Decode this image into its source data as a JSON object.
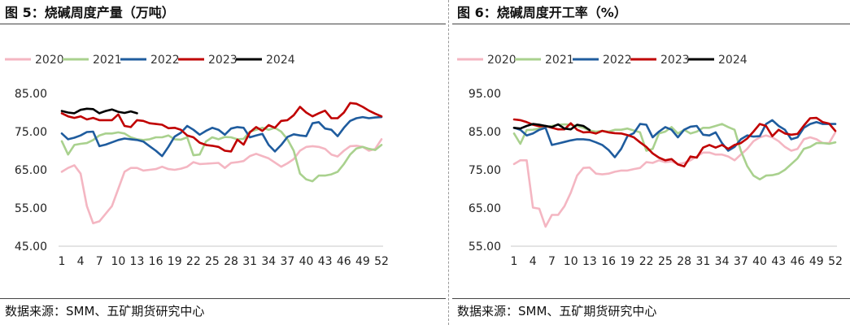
{
  "panels": [
    {
      "title": "图 5：烧碱周度产量（万吨）",
      "source": "数据来源：SMM、五矿期货研究中心"
    },
    {
      "title": "图 6：烧碱周度开工率（%）",
      "source": "数据来源：SMM、五矿期货研究中心"
    }
  ],
  "colors": {
    "2020": "#f4b6c2",
    "2021": "#a9d18e",
    "2022": "#1f5c9e",
    "2023": "#c00000",
    "2024": "#000000"
  },
  "chart_data": [
    {
      "type": "line",
      "title": "图 5：烧碱周度产量（万吨）",
      "xlabel": "",
      "ylabel": "",
      "ylim": [
        45,
        85
      ],
      "yticks": [
        "45.00",
        "55.00",
        "65.00",
        "75.00",
        "85.00"
      ],
      "xticks": [
        1,
        4,
        7,
        10,
        13,
        16,
        19,
        22,
        25,
        28,
        31,
        34,
        37,
        40,
        43,
        46,
        49,
        52
      ],
      "grid": false,
      "legend": "top",
      "series": [
        {
          "name": "2020",
          "values": [
            64.5,
            65.5,
            66.2,
            64,
            55.5,
            51,
            51.5,
            53.5,
            55.5,
            60,
            64.5,
            65.5,
            65.5,
            64.8,
            65,
            65.2,
            65.8,
            65.2,
            65,
            65.3,
            65.8,
            67,
            66.5,
            66.6,
            66.7,
            66.8,
            65.5,
            66.8,
            67,
            67.3,
            68.6,
            69.2,
            68.6,
            68,
            66.9,
            65.8,
            66.7,
            67.8,
            70,
            71,
            71.2,
            71,
            70.5,
            69,
            68.5,
            70,
            71.2,
            71.3,
            71,
            70,
            70.5,
            73
          ]
        },
        {
          "name": "2021",
          "values": [
            72.5,
            69,
            71.5,
            71.8,
            72,
            72.8,
            74,
            74.5,
            74.5,
            74.8,
            74.5,
            73.5,
            73,
            72.8,
            73,
            73.5,
            73.5,
            74,
            73,
            72.9,
            73.5,
            68.8,
            69,
            72.4,
            73.5,
            73,
            73.6,
            73.5,
            73,
            73.1,
            75,
            75.5,
            76,
            75.5,
            76,
            75,
            73,
            70,
            64,
            62.5,
            62,
            63.5,
            63.5,
            63.8,
            64.5,
            66.5,
            69,
            70.6,
            71,
            70.5,
            70.2,
            71.5
          ]
        },
        {
          "name": "2022",
          "values": [
            74.5,
            73,
            73.4,
            74,
            74.9,
            75,
            71.2,
            71.6,
            72.2,
            72.8,
            73.2,
            73,
            72.8,
            72.4,
            71.2,
            70,
            68.6,
            71,
            73.7,
            74.7,
            76.5,
            75.5,
            74.2,
            75.2,
            76,
            75.5,
            74.2,
            75.8,
            76.2,
            76,
            73.5,
            74,
            74.4,
            71.5,
            69.8,
            71.5,
            73.6,
            74.3,
            74,
            73.8,
            77.2,
            77.5,
            75.8,
            75.5,
            73.8,
            76,
            77.8,
            78.5,
            78.8,
            78.5,
            78.7,
            78.8
          ]
        },
        {
          "name": "2023",
          "values": [
            79.8,
            79,
            78.6,
            79,
            78.2,
            78.6,
            78,
            78,
            78,
            79.5,
            76.5,
            76.2,
            78,
            77.8,
            77.2,
            77,
            76.8,
            75.9,
            76,
            75.5,
            74,
            73.5,
            72.1,
            71.5,
            71.3,
            71,
            70,
            69.8,
            72.9,
            71.6,
            74.8,
            76.2,
            75.2,
            76.7,
            76,
            77.8,
            78,
            79.3,
            81.5,
            80,
            79,
            79.8,
            80.5,
            78.5,
            78.5,
            80,
            82.5,
            82.3,
            81.5,
            80.5,
            79.7,
            79
          ]
        },
        {
          "name": "2024",
          "values": [
            80.4,
            80,
            79.8,
            80.7,
            81,
            80.9,
            79.8,
            80.4,
            80.8,
            80.2,
            79.9,
            80.3,
            79.8
          ]
        }
      ]
    },
    {
      "type": "line",
      "title": "图 6：烧碱周度开工率（%）",
      "xlabel": "",
      "ylabel": "",
      "ylim": [
        55,
        95
      ],
      "yticks": [
        "55.00",
        "65.00",
        "75.00",
        "85.00",
        "95.00"
      ],
      "xticks": [
        1,
        4,
        7,
        10,
        13,
        16,
        19,
        22,
        25,
        28,
        31,
        34,
        37,
        40,
        43,
        46,
        49,
        52
      ],
      "grid": false,
      "legend": "top",
      "series": [
        {
          "name": "2020",
          "values": [
            76.5,
            77.5,
            77.5,
            65.1,
            64.8,
            60.1,
            63.2,
            63.2,
            65.5,
            69,
            73.5,
            75.5,
            75.6,
            74,
            73.8,
            74,
            74.5,
            74.8,
            74.8,
            75.2,
            75.5,
            77,
            76.8,
            77.5,
            77,
            77.2,
            76.5,
            76.8,
            77.5,
            78.5,
            79.5,
            79.5,
            79,
            79,
            78.5,
            77.5,
            79,
            80.5,
            82.5,
            83.5,
            84,
            83.5,
            82.5,
            81,
            80,
            80.5,
            83,
            83.5,
            83,
            82,
            82,
            84.8
          ]
        },
        {
          "name": "2021",
          "values": [
            84.5,
            81.8,
            85.4,
            85.5,
            85.8,
            86.2,
            86.5,
            86.8,
            86.9,
            86.8,
            86.5,
            86,
            85.3,
            85,
            85.2,
            85,
            85.5,
            85.5,
            85.8,
            85.3,
            84.8,
            80,
            80.5,
            84.5,
            85,
            86.2,
            84.5,
            85.5,
            84.5,
            85,
            86,
            86,
            86.5,
            87,
            86.2,
            85.5,
            80,
            76,
            73.5,
            72.5,
            73.5,
            73.6,
            74,
            75,
            76.5,
            78,
            80.5,
            81,
            82,
            82,
            81.8,
            82.2
          ]
        },
        {
          "name": "2022",
          "values": [
            86,
            85.5,
            84,
            84.5,
            85.5,
            86,
            81.5,
            81.9,
            82.3,
            82.7,
            83,
            83,
            82.8,
            82.2,
            81.5,
            80.2,
            78.3,
            80.5,
            83.8,
            84.6,
            87,
            86.8,
            83.5,
            85,
            86.2,
            85.5,
            83.5,
            85.5,
            86.3,
            86.5,
            84.2,
            84,
            84.8,
            82,
            80,
            81,
            83,
            84,
            83.7,
            83.8,
            87,
            88,
            86.5,
            85.5,
            83,
            83.5,
            86,
            87,
            87.5,
            87,
            87,
            87
          ]
        },
        {
          "name": "2023",
          "values": [
            88.2,
            88,
            87.5,
            86.8,
            86.4,
            86.5,
            86,
            85.6,
            85.6,
            87.2,
            85.5,
            84.8,
            84.9,
            84.5,
            85.2,
            84.8,
            84.6,
            84.5,
            84.1,
            83.5,
            82.2,
            81,
            79.3,
            78.2,
            77.5,
            77.8,
            76.4,
            75.9,
            78.5,
            78.2,
            80.8,
            81.5,
            80.8,
            81.5,
            80.5,
            81.5,
            82,
            83.2,
            85,
            87,
            86.5,
            83.8,
            85.5,
            84.5,
            84.2,
            84.4,
            86.6,
            88.5,
            88.6,
            87.5,
            87.1,
            85.2
          ]
        },
        {
          "name": "2024",
          "values": [
            86,
            85.8,
            86.5,
            87,
            86.8,
            86.5,
            86.2,
            86.9,
            85.8,
            85.6,
            86.8,
            86.5,
            85.4
          ]
        }
      ]
    }
  ]
}
